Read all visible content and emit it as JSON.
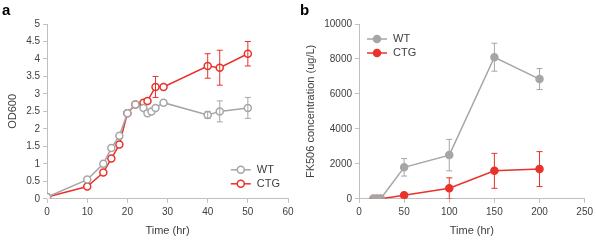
{
  "chart_data": [
    {
      "type": "line",
      "title": "a",
      "x_label": "Time (hr)",
      "y_label": "OD600",
      "xlim": [
        0,
        60
      ],
      "xticks": [
        0,
        10,
        20,
        30,
        40,
        50,
        60
      ],
      "ylim": [
        0,
        5
      ],
      "yticks": [
        0,
        0.5,
        1,
        1.5,
        2,
        2.5,
        3,
        3.5,
        4,
        4.5,
        5
      ],
      "grid": false,
      "legend": "bottom right",
      "series": [
        {
          "name": "WT",
          "color": "#a6a6a6",
          "marker": "open-circle",
          "line_style": "solid",
          "x": [
            0,
            10,
            14,
            16,
            18,
            20,
            22,
            24,
            25,
            26,
            27,
            29,
            40,
            43,
            50
          ],
          "values": [
            0.05,
            0.55,
            1.0,
            1.45,
            1.8,
            2.45,
            2.7,
            2.6,
            2.45,
            2.5,
            2.6,
            2.75,
            2.4,
            2.5,
            2.6
          ],
          "errors": [
            null,
            null,
            null,
            null,
            null,
            null,
            null,
            null,
            null,
            null,
            null,
            null,
            0.1,
            0.3,
            0.3
          ]
        },
        {
          "name": "CTG",
          "color": "#e8322a",
          "marker": "open-circle",
          "line_style": "solid",
          "x": [
            0,
            10,
            14,
            16,
            18,
            20,
            22,
            24,
            25,
            27,
            29,
            40,
            43,
            50
          ],
          "values": [
            0.05,
            0.35,
            0.75,
            1.15,
            1.55,
            2.45,
            2.7,
            2.75,
            2.8,
            3.2,
            3.2,
            3.8,
            3.75,
            4.15
          ],
          "errors": [
            null,
            null,
            null,
            null,
            null,
            null,
            null,
            null,
            null,
            0.3,
            null,
            0.35,
            0.5,
            0.35
          ]
        }
      ]
    },
    {
      "type": "line",
      "title": "b",
      "x_label": "Time (hr)",
      "y_label": "FK506 concentration (ug/L)",
      "xlim": [
        0,
        250
      ],
      "xticks": [
        0,
        50,
        100,
        150,
        200,
        250
      ],
      "ylim": [
        0,
        10000
      ],
      "yticks": [
        0,
        2000,
        4000,
        6000,
        8000,
        10000
      ],
      "grid": false,
      "legend": "top left",
      "series": [
        {
          "name": "WT",
          "color": "#a6a6a6",
          "marker": "filled-circle",
          "line_style": "solid",
          "x": [
            16,
            20,
            24,
            50,
            100,
            150,
            200
          ],
          "values": [
            0,
            0,
            0,
            1800,
            2500,
            8100,
            6850
          ],
          "errors": [
            null,
            null,
            null,
            500,
            900,
            800,
            600
          ]
        },
        {
          "name": "CTG",
          "color": "#e8322a",
          "marker": "filled-circle",
          "line_style": "solid",
          "x": [
            16,
            20,
            24,
            50,
            100,
            150,
            200
          ],
          "values": [
            0,
            0,
            0,
            200,
            600,
            1600,
            1700
          ],
          "errors": [
            null,
            null,
            null,
            null,
            600,
            1000,
            1000
          ]
        }
      ]
    }
  ]
}
